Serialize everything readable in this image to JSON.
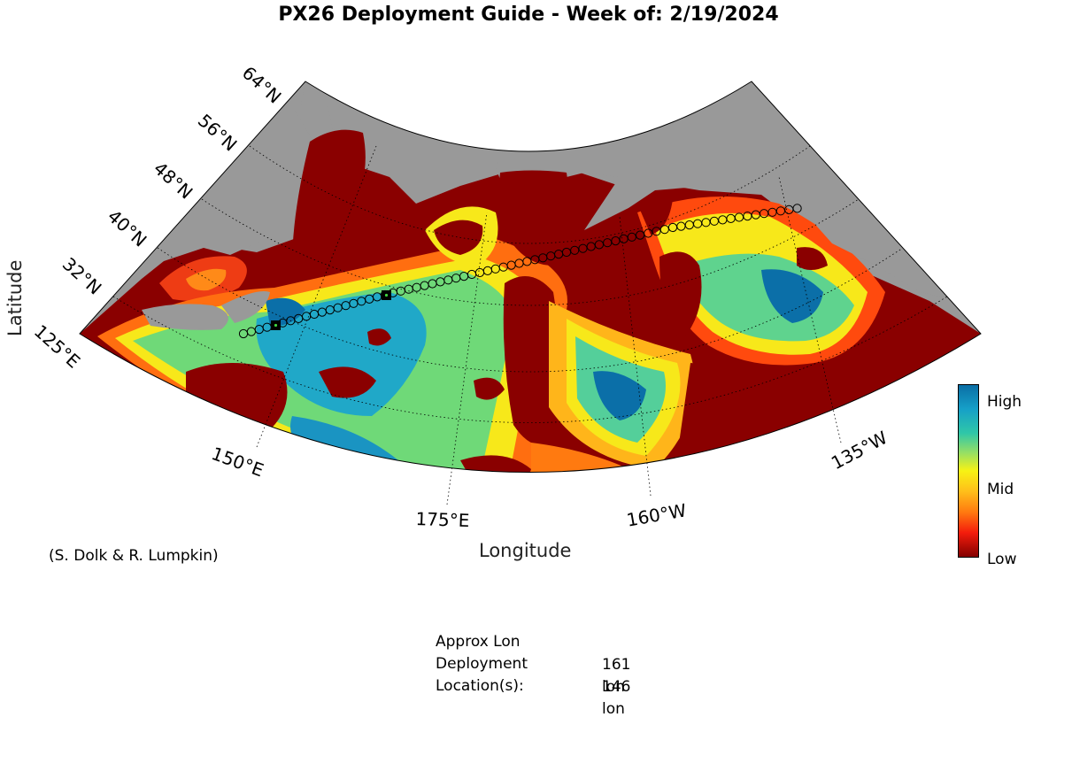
{
  "title": "PX26 Deployment Guide - Week of: 2/19/2024",
  "axes": {
    "xlabel": "Longitude",
    "ylabel": "Latitude",
    "lat_ticks": [
      "64°N",
      "56°N",
      "48°N",
      "40°N",
      "32°N"
    ],
    "lon_ticks": [
      "125°E",
      "150°E",
      "175°E",
      "160°W",
      "135°W"
    ]
  },
  "credit": "(S. Dolk & R. Lumpkin)",
  "colorbar": {
    "labels": {
      "high": "High",
      "mid": "Mid",
      "low": "Low"
    },
    "colors": [
      "#0a6ea5",
      "#2fc7a8",
      "#f7f214",
      "#ff7a10",
      "#840000"
    ]
  },
  "land_color": "#999999",
  "deployment": {
    "heading": "Approx Lon",
    "label1": "Deployment",
    "label2": "Location(s):",
    "lon1": "161 lon",
    "lon2": "146 lon"
  }
}
